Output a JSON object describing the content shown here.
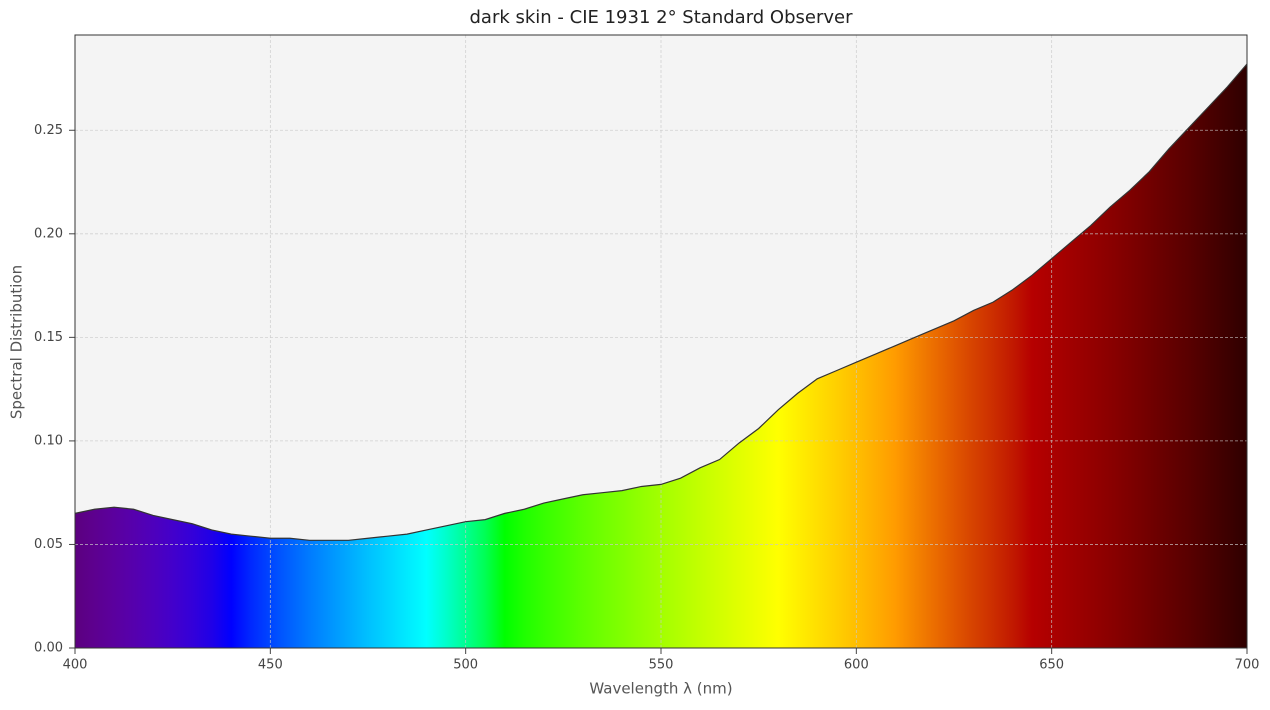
{
  "chart_data": {
    "type": "area",
    "title": "dark skin - CIE 1931 2° Standard Observer",
    "xlabel": "Wavelength λ (nm)",
    "ylabel": "Spectral Distribution",
    "x": [
      400,
      405,
      410,
      415,
      420,
      425,
      430,
      435,
      440,
      445,
      450,
      455,
      460,
      465,
      470,
      475,
      480,
      485,
      490,
      495,
      500,
      505,
      510,
      515,
      520,
      525,
      530,
      535,
      540,
      545,
      550,
      555,
      560,
      565,
      570,
      575,
      580,
      585,
      590,
      595,
      600,
      605,
      610,
      615,
      620,
      625,
      630,
      635,
      640,
      645,
      650,
      655,
      660,
      665,
      670,
      675,
      680,
      685,
      690,
      695,
      700
    ],
    "values": [
      0.065,
      0.067,
      0.068,
      0.067,
      0.064,
      0.062,
      0.06,
      0.057,
      0.055,
      0.054,
      0.053,
      0.053,
      0.052,
      0.052,
      0.052,
      0.053,
      0.054,
      0.055,
      0.057,
      0.059,
      0.061,
      0.062,
      0.065,
      0.067,
      0.07,
      0.072,
      0.074,
      0.075,
      0.076,
      0.078,
      0.079,
      0.082,
      0.087,
      0.091,
      0.099,
      0.106,
      0.115,
      0.123,
      0.13,
      0.134,
      0.138,
      0.142,
      0.146,
      0.15,
      0.154,
      0.158,
      0.163,
      0.167,
      0.173,
      0.18,
      0.188,
      0.196,
      0.204,
      0.213,
      0.221,
      0.23,
      0.241,
      0.251,
      0.261,
      0.271,
      0.282
    ],
    "xlim": [
      400,
      700
    ],
    "ylim": [
      0,
      0.296
    ],
    "xticks": [
      400,
      450,
      500,
      550,
      600,
      650,
      700
    ],
    "yticks": [
      {
        "value": 0,
        "label": "0.00"
      },
      {
        "value": 0.05,
        "label": "0.05"
      },
      {
        "value": 0.1,
        "label": "0.10"
      },
      {
        "value": 0.15,
        "label": "0.15"
      },
      {
        "value": 0.2,
        "label": "0.20"
      },
      {
        "value": 0.25,
        "label": "0.25"
      }
    ],
    "grid": true,
    "line_color": "#333333",
    "background": "#f4f4f4"
  }
}
